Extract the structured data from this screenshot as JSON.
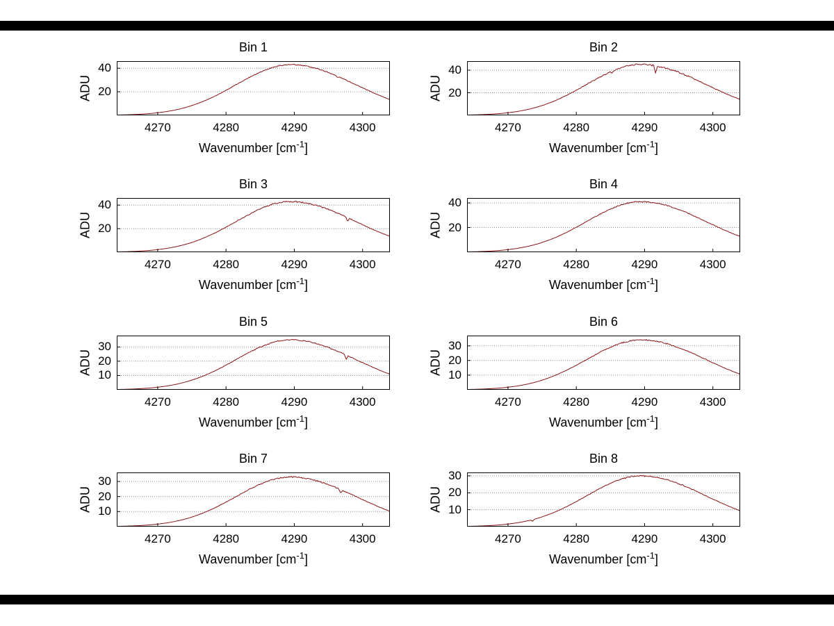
{
  "figure": {
    "background": "#ffffff",
    "top_bar_color": "#000000",
    "bottom_bar_color": "#000000"
  },
  "colors": {
    "axis": "#000000",
    "grid": "#8a8a8a",
    "curve": "#8a1212"
  },
  "labels": {
    "ylabel": "ADU",
    "xlabel_prefix": "Wavenumber [cm",
    "xlabel_sup": "-1",
    "xlabel_suffix": "]"
  },
  "chart_data": {
    "type": "line",
    "layout": "4 rows x 2 columns of subplots",
    "xlabel": "Wavenumber [cm^-1]",
    "ylabel": "ADU",
    "grid": "horizontal dotted gridlines at y ticks",
    "xlim": [
      4264,
      4304
    ],
    "x_ticks": [
      4270,
      4280,
      4290,
      4300
    ],
    "x": [
      4264,
      4266,
      4268,
      4270,
      4272,
      4274,
      4276,
      4278,
      4280,
      4282,
      4284,
      4286,
      4288,
      4290,
      4292,
      4294,
      4296,
      4298,
      4300,
      4302,
      4304
    ],
    "series": [
      {
        "name": "Bin 1",
        "values": [
          0.3,
          0.6,
          1.2,
          2.2,
          3.9,
          6.6,
          10.4,
          15.3,
          21.2,
          27.7,
          34.0,
          39.1,
          42.3,
          43.0,
          41.5,
          38.4,
          34.0,
          28.8,
          23.3,
          18.1,
          13.4
        ],
        "y_ticks": [
          20,
          40
        ],
        "y_max": 46,
        "gaussian": {
          "peak": 43,
          "center": 4289.5,
          "sigma_left": 8,
          "sigma_right": 9.5
        },
        "noise_amp": 0.4,
        "notches": [
          {
            "x": 4296.3,
            "depth": 1.2
          }
        ]
      },
      {
        "name": "Bin 2",
        "values": [
          0.3,
          0.6,
          1.2,
          2.3,
          4.1,
          6.9,
          10.8,
          16.0,
          22.2,
          29.0,
          35.6,
          40.9,
          44.2,
          45.0,
          43.5,
          40.2,
          35.6,
          30.2,
          24.4,
          18.9,
          14.0
        ],
        "y_ticks": [
          20,
          40
        ],
        "y_max": 48,
        "gaussian": {
          "peak": 45,
          "center": 4289.5,
          "sigma_left": 8,
          "sigma_right": 9.5
        },
        "noise_amp": 0.6,
        "notches": [
          {
            "x": 4291.6,
            "depth": 6.5
          },
          {
            "x": 4285.2,
            "depth": 1.5
          }
        ]
      },
      {
        "name": "Bin 3",
        "values": [
          0.3,
          0.6,
          1.2,
          2.2,
          3.9,
          6.6,
          10.4,
          15.3,
          21.2,
          27.7,
          34.0,
          39.1,
          42.3,
          43.0,
          41.5,
          38.4,
          34.0,
          28.8,
          23.3,
          18.1,
          13.4
        ],
        "y_ticks": [
          20,
          40
        ],
        "y_max": 46,
        "gaussian": {
          "peak": 43,
          "center": 4289.5,
          "sigma_left": 8,
          "sigma_right": 9.5
        },
        "noise_amp": 0.45,
        "notches": [
          {
            "x": 4297.8,
            "depth": 3.2
          }
        ]
      },
      {
        "name": "Bin 4",
        "values": [
          0.2,
          0.5,
          1.1,
          2.1,
          3.7,
          6.3,
          9.9,
          14.6,
          20.3,
          26.4,
          32.4,
          37.3,
          40.3,
          41.0,
          39.6,
          36.7,
          32.4,
          27.5,
          22.3,
          17.3,
          12.8
        ],
        "y_ticks": [
          20,
          40
        ],
        "y_max": 44,
        "gaussian": {
          "peak": 41,
          "center": 4289.5,
          "sigma_left": 8,
          "sigma_right": 9.5
        },
        "noise_amp": 0.4,
        "notches": []
      },
      {
        "name": "Bin 5",
        "values": [
          0.2,
          0.5,
          0.9,
          1.8,
          3.2,
          5.4,
          8.4,
          12.5,
          17.3,
          22.5,
          27.7,
          31.8,
          34.4,
          35.0,
          33.8,
          31.3,
          27.7,
          23.5,
          19.0,
          14.7,
          10.9
        ],
        "y_ticks": [
          10,
          20,
          30
        ],
        "y_max": 38,
        "gaussian": {
          "peak": 35,
          "center": 4289.5,
          "sigma_left": 8,
          "sigma_right": 9.5
        },
        "noise_amp": 0.35,
        "notches": [
          {
            "x": 4297.6,
            "depth": 3.0
          }
        ]
      },
      {
        "name": "Bin 6",
        "values": [
          0.2,
          0.4,
          0.9,
          1.7,
          3.1,
          5.2,
          8.2,
          12.1,
          16.8,
          21.9,
          26.9,
          30.9,
          33.4,
          34.0,
          32.8,
          30.4,
          26.9,
          22.8,
          18.5,
          14.3,
          10.6
        ],
        "y_ticks": [
          10,
          20,
          30
        ],
        "y_max": 37,
        "gaussian": {
          "peak": 34,
          "center": 4289.5,
          "sigma_left": 8,
          "sigma_right": 9.5
        },
        "noise_amp": 0.35,
        "notches": []
      },
      {
        "name": "Bin 7",
        "values": [
          0.2,
          0.4,
          0.9,
          1.7,
          3.0,
          5.0,
          8.0,
          11.7,
          16.3,
          21.3,
          26.1,
          30.0,
          32.4,
          33.0,
          31.9,
          29.5,
          26.1,
          22.1,
          17.9,
          13.9,
          10.3
        ],
        "y_ticks": [
          10,
          20,
          30
        ],
        "y_max": 36,
        "gaussian": {
          "peak": 33,
          "center": 4289.5,
          "sigma_left": 8,
          "sigma_right": 9.5
        },
        "noise_amp": 0.35,
        "notches": [
          {
            "x": 4296.8,
            "depth": 2.2
          }
        ]
      },
      {
        "name": "Bin 8",
        "values": [
          0.2,
          0.4,
          0.8,
          1.5,
          2.7,
          4.6,
          7.2,
          10.7,
          14.8,
          19.3,
          23.7,
          27.3,
          29.5,
          30.0,
          29.0,
          26.8,
          23.7,
          20.1,
          16.3,
          12.6,
          9.4
        ],
        "y_ticks": [
          10,
          20,
          30
        ],
        "y_max": 32,
        "gaussian": {
          "peak": 30,
          "center": 4289.5,
          "sigma_left": 8,
          "sigma_right": 9.5
        },
        "noise_amp": 0.3,
        "notches": [
          {
            "x": 4273.6,
            "depth": 1.0
          }
        ]
      }
    ]
  }
}
